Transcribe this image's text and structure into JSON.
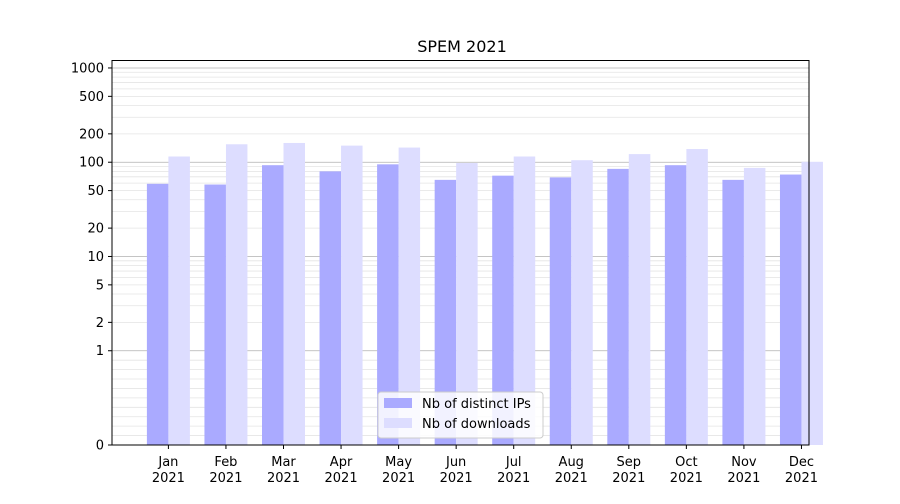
{
  "chart_data": {
    "type": "bar",
    "title": "SPEM 2021",
    "xlabel": "",
    "ylabel": "",
    "yscale": "symlog",
    "ylim": [
      0,
      1200
    ],
    "yticks": [
      0,
      1,
      2,
      5,
      10,
      20,
      50,
      100,
      200,
      500,
      1000
    ],
    "ytick_labels": [
      "0",
      "1",
      "2",
      "5",
      "10",
      "20",
      "50",
      "100",
      "200",
      "500",
      "1000"
    ],
    "grid": "horizontal (major and minor)",
    "legend_position": "lower center",
    "categories": [
      "Jan\n2021",
      "Feb\n2021",
      "Mar\n2021",
      "Apr\n2021",
      "May\n2021",
      "Jun\n2021",
      "Jul\n2021",
      "Aug\n2021",
      "Sep\n2021",
      "Oct\n2021",
      "Nov\n2021",
      "Dec\n2021"
    ],
    "category_month": [
      "Jan",
      "Feb",
      "Mar",
      "Apr",
      "May",
      "Jun",
      "Jul",
      "Aug",
      "Sep",
      "Oct",
      "Nov",
      "Dec"
    ],
    "category_year": [
      "2021",
      "2021",
      "2021",
      "2021",
      "2021",
      "2021",
      "2021",
      "2021",
      "2021",
      "2021",
      "2021",
      "2021"
    ],
    "series": [
      {
        "name": "Nb of distinct IPs",
        "color": "#aaaaff",
        "values": [
          59,
          58,
          93,
          80,
          95,
          65,
          72,
          69,
          85,
          93,
          65,
          74
        ]
      },
      {
        "name": "Nb of downloads",
        "color": "#ddddff",
        "values": [
          115,
          155,
          160,
          150,
          143,
          98,
          115,
          105,
          122,
          138,
          87,
          101
        ]
      }
    ]
  }
}
